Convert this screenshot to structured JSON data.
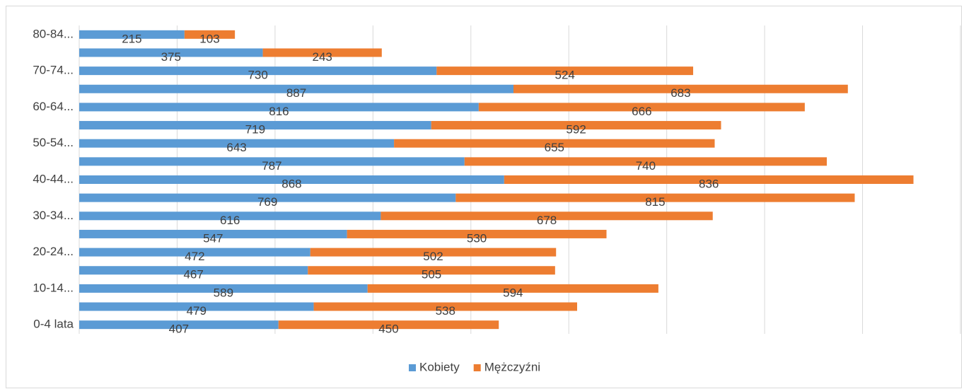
{
  "chart_data": {
    "type": "stacked_barh",
    "categories": [
      "0-4 lata",
      null,
      "10-14...",
      null,
      "20-24...",
      null,
      "30-34...",
      null,
      "40-44...",
      null,
      "50-54...",
      null,
      "60-64...",
      null,
      "70-74...",
      null,
      "80-84..."
    ],
    "series": [
      {
        "name": "Kobiety",
        "color": "#5b9bd5",
        "values": [
          407,
          479,
          589,
          467,
          472,
          547,
          616,
          769,
          868,
          787,
          643,
          719,
          816,
          887,
          730,
          375,
          215
        ]
      },
      {
        "name": "Mężczyźni",
        "color": "#ed7d31",
        "values": [
          450,
          538,
          594,
          505,
          502,
          530,
          678,
          815,
          836,
          740,
          655,
          592,
          666,
          683,
          524,
          243,
          103
        ]
      }
    ],
    "xlim": [
      0,
      1800
    ],
    "xticks": [
      0,
      200,
      400,
      600,
      800,
      1000,
      1200,
      1400,
      1600,
      1800
    ],
    "grid": true,
    "legend": "bottom"
  }
}
